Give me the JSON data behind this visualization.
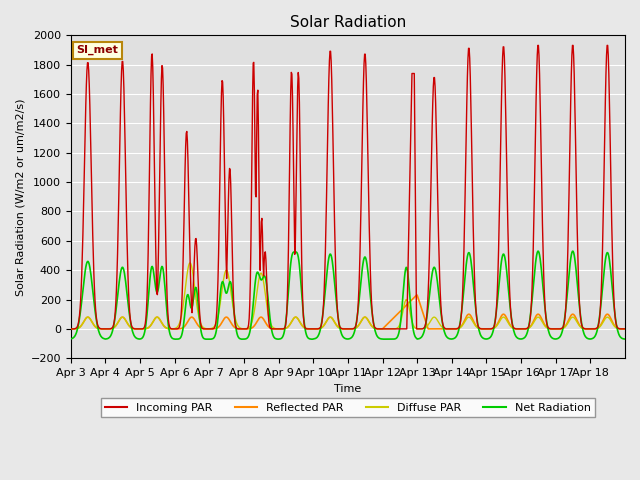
{
  "title": "Solar Radiation",
  "ylabel": "Solar Radiation (W/m2 or um/m2/s)",
  "xlabel": "Time",
  "ylim": [
    -200,
    2000
  ],
  "xlim": [
    0,
    960
  ],
  "x_tick_labels": [
    "Apr 3",
    "Apr 4",
    "Apr 5",
    "Apr 6",
    "Apr 7",
    "Apr 8",
    "Apr 9",
    "Apr 10",
    "Apr 11",
    "Apr 12",
    "Apr 13",
    "Apr 14",
    "Apr 15",
    "Apr 16",
    "Apr 17",
    "Apr 18"
  ],
  "x_tick_positions": [
    0,
    60,
    120,
    180,
    240,
    300,
    360,
    420,
    480,
    540,
    600,
    660,
    720,
    780,
    840,
    900
  ],
  "background_color": "#e8e8e8",
  "plot_bg_color": "#e0e0e0",
  "legend_label": "SI_met",
  "colors": {
    "incoming": "#cc0000",
    "reflected": "#ff8800",
    "diffuse": "#cccc00",
    "net": "#00cc00"
  },
  "title_fontsize": 11,
  "axis_fontsize": 8,
  "tick_fontsize": 8
}
